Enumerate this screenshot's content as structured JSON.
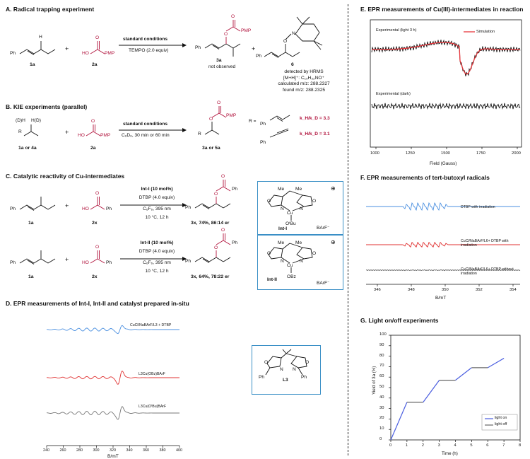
{
  "colors": {
    "wine": "#b0103a",
    "blue": "#4a8fe0",
    "red": "#e03030",
    "gray": "#777777",
    "box": "#3a8fc6",
    "epr_red": "#e8383d"
  },
  "A": {
    "title": "A. Radical trapping experiment",
    "reactant1": "1a",
    "reactant2": "2a",
    "plus": "+",
    "cond_top": "standard conditions",
    "cond_bottom": "TEMPO (2.0 equiv)",
    "product_label": "3a",
    "product_note": "not observed",
    "adduct_label": "6",
    "hrms": [
      "detected by HRMS",
      "[M+H]⁺: C₁₉H₃₂NO⁺",
      "calculated m/z: 288.2327",
      "found m/z: 288.2325"
    ],
    "atoms": {
      "Ph": "Ph",
      "H": "H",
      "HO": "HO",
      "O": "O",
      "PMP": "PMP",
      "N": "N"
    }
  },
  "B": {
    "title": "B. KIE experiments (parallel)",
    "dh": "(D)H",
    "hd": "H(D)",
    "R": "R",
    "reactant1": "1a or 4a",
    "reactant2": "2a",
    "cond_top": "standard conditions",
    "cond_bottom": "C₆D₆, 30 min or 60 min",
    "product_label": "3a or 5a",
    "r_eq": "R =",
    "kie1": "k_H/k_D = 3.3",
    "kie2": "k_H/k_D = 3.1"
  },
  "C": {
    "title": "C. Catalytic reactivity of Cu-intermediates",
    "rxn1": {
      "reactant1": "1a",
      "reactant2": "2x",
      "cond": [
        "Int-I (10 mol%)",
        "DTBP (4.0 equiv)",
        "C₆F₆, 395 nm",
        "10 °C, 12 h"
      ],
      "product": "3x, 74%, 86:14 er"
    },
    "rxn2": {
      "reactant1": "1a",
      "reactant2": "2x",
      "cond": [
        "Int-II (10 mol%)",
        "DTBP (4.0 equiv)",
        "C₆F₆, 395 nm",
        "10 °C, 12 h"
      ],
      "product": "3x, 64%, 78:22 er"
    },
    "int1": {
      "label": "Int-I",
      "ligand": "OᵗBu",
      "counter": "BArF⁻"
    },
    "int2": {
      "label": "Int-II",
      "ligand": "OBz",
      "counter": "BArF⁻"
    },
    "me": "Me",
    "cu": "Cu",
    "N": "N",
    "O": "O"
  },
  "D": {
    "title": "D. EPR measurements of Int-I, Int-II and catalyst prepared in-situ",
    "traces": [
      "CuCl/NaBArF/L3 + DTBP",
      "L3Cu(OBz)BArF",
      "L3Cu(OᵗBu)BArF"
    ],
    "xticks": [
      "240",
      "260",
      "280",
      "300",
      "320",
      "340",
      "360",
      "380",
      "400"
    ],
    "xlabel": "B/mT",
    "ligand_label": "L3",
    "ph": "Ph"
  },
  "E": {
    "title": "E. EPR measurements of Cu(III)-intermediates in reaction",
    "legend_exp": "Experimental (light 3 h)",
    "legend_sim": "Simulation",
    "dark_label": "Experimental (dark)",
    "xticks": [
      "1000",
      "1250",
      "1500",
      "1750",
      "2000"
    ],
    "xlabel": "Field (Gauss)"
  },
  "F": {
    "title": "F. EPR measurements of tert-butoxyl radicals",
    "traces": [
      "DTBP with irradiation",
      "CuCl/NaBArF/L6+ DTBP with irradiation",
      "CuCl/NaBArF/L6+ DTBP without irradiation"
    ],
    "xticks": [
      "346",
      "348",
      "350",
      "352",
      "354"
    ],
    "xlabel": "B/mT"
  },
  "G": {
    "title": "G. Light on/off experiments",
    "chart_data": {
      "type": "line",
      "title": "",
      "xlabel": "Time (h)",
      "ylabel": "Yield of 3a (%)",
      "xlim": [
        0,
        8
      ],
      "ylim": [
        0,
        100
      ],
      "xticks": [
        0,
        1,
        2,
        3,
        4,
        5,
        6,
        7,
        8
      ],
      "yticks": [
        0,
        10,
        20,
        30,
        40,
        50,
        60,
        70,
        80,
        90,
        100
      ],
      "series": [
        {
          "name": "light on",
          "color": "#4a5ee0",
          "segments": [
            [
              [
                0,
                0
              ],
              [
                1,
                36
              ]
            ],
            [
              [
                2,
                36
              ],
              [
                3,
                57
              ]
            ],
            [
              [
                4,
                57
              ],
              [
                5,
                69
              ]
            ],
            [
              [
                6,
                69
              ],
              [
                7,
                78
              ]
            ]
          ]
        },
        {
          "name": "light off",
          "color": "#666666",
          "segments": [
            [
              [
                1,
                36
              ],
              [
                2,
                36
              ]
            ],
            [
              [
                3,
                57
              ],
              [
                4,
                57
              ]
            ],
            [
              [
                5,
                69
              ],
              [
                6,
                69
              ]
            ]
          ]
        }
      ],
      "legend": "lower-right"
    }
  }
}
